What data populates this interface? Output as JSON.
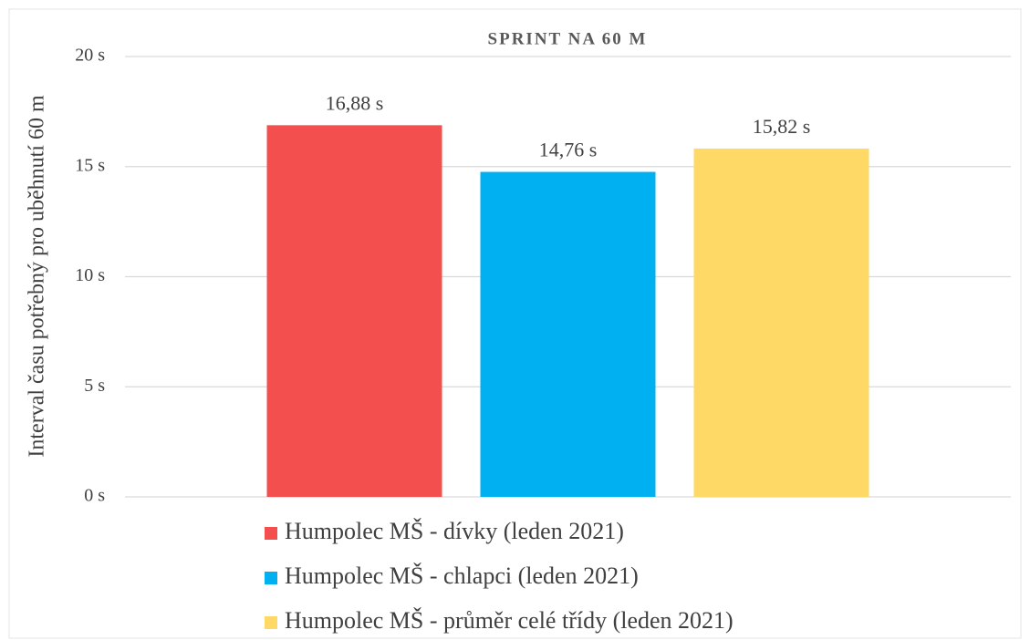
{
  "chart_data": {
    "type": "bar",
    "title": "SPRINT NA 60 M",
    "y_label": "Interval času potřebný pro uběhnutí 60 m",
    "categories": [
      null
    ],
    "series": [
      {
        "name": "Humpolec MŠ - dívky (leden 2021)",
        "color": "#f44f4f",
        "values": [
          16.88
        ],
        "value_labels": [
          "16,88 s"
        ]
      },
      {
        "name": "Humpolec MŠ - chlapci (leden 2021)",
        "color": "#00b0f0",
        "values": [
          14.76
        ],
        "value_labels": [
          "14,76 s"
        ]
      },
      {
        "name": "Humpolec MŠ - průměr celé třídy (leden 2021)",
        "color": "#ffd966",
        "values": [
          15.82
        ],
        "value_labels": [
          "15,82 s"
        ]
      }
    ],
    "ylim": [
      0,
      20
    ],
    "yticks": [
      {
        "value": 0,
        "label": "0 s"
      },
      {
        "value": 5,
        "label": "5 s"
      },
      {
        "value": 10,
        "label": "10 s"
      },
      {
        "value": 15,
        "label": "15 s"
      },
      {
        "value": 20,
        "label": "20 s"
      }
    ],
    "grid": true,
    "legend": "bottom"
  }
}
